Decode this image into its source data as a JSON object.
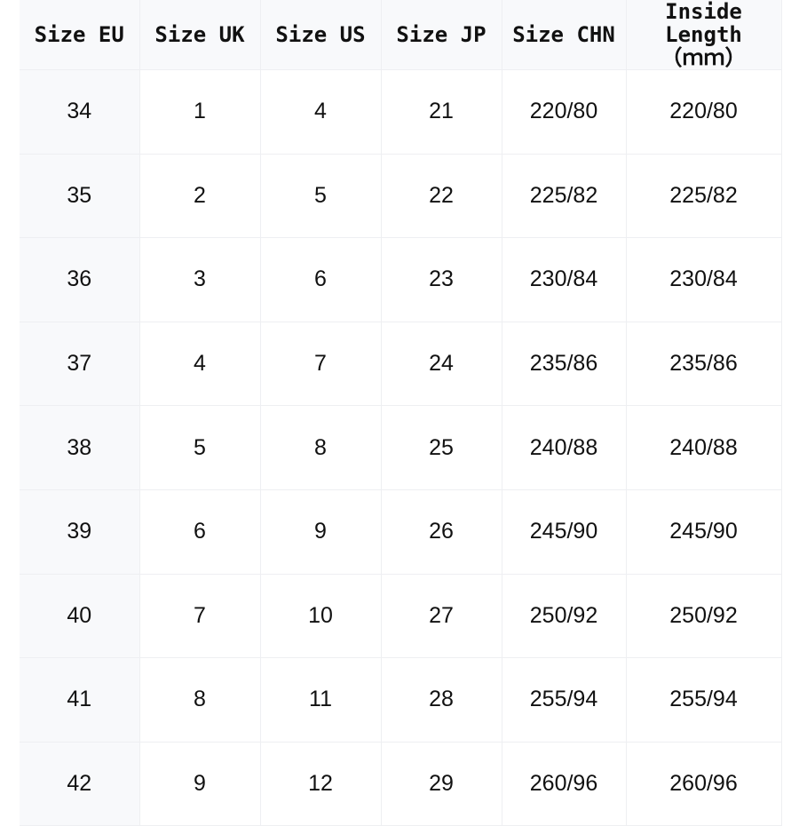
{
  "headers": [
    "Size EU",
    "Size UK",
    "Size US",
    "Size JP",
    "Size CHN",
    "Inside Length\n（ｍｍ）"
  ],
  "rows": [
    [
      "34",
      "1",
      "4",
      "21",
      "220/80",
      "220/80"
    ],
    [
      "35",
      "2",
      "5",
      "22",
      "225/82",
      "225/82"
    ],
    [
      "36",
      "3",
      "6",
      "23",
      "230/84",
      "230/84"
    ],
    [
      "37",
      "4",
      "7",
      "24",
      "235/86",
      "235/86"
    ],
    [
      "38",
      "5",
      "8",
      "25",
      "240/88",
      "240/88"
    ],
    [
      "39",
      "6",
      "9",
      "26",
      "245/90",
      "245/90"
    ],
    [
      "40",
      "7",
      "10",
      "27",
      "250/92",
      "250/92"
    ],
    [
      "41",
      "8",
      "11",
      "28",
      "255/94",
      "255/94"
    ],
    [
      "42",
      "9",
      "12",
      "29",
      "260/96",
      "260/96"
    ]
  ]
}
